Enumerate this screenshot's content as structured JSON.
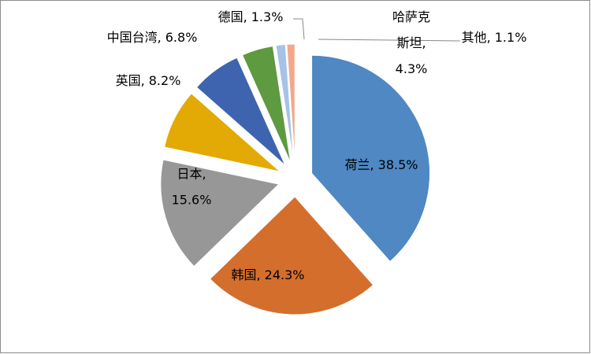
{
  "chart_data": {
    "type": "pie",
    "values": [
      38.5,
      24.3,
      15.6,
      8.2,
      6.8,
      4.3,
      1.3,
      1.1
    ],
    "value_labels": [
      "荷兰, 38.5%",
      "韩国, 24.3%",
      "日本,\n15.6%",
      "英国, 8.2%",
      "中国台湾, 6.8%",
      "哈萨克\n斯坦,\n4.3%",
      "德国, 1.3%",
      "其他, 1.1%"
    ],
    "colors": [
      "#4f88c2",
      "#d46e2c",
      "#979797",
      "#e3aa05",
      "#3e64b0",
      "#5d9a40",
      "#a6c2e6",
      "#f1a98b"
    ]
  }
}
